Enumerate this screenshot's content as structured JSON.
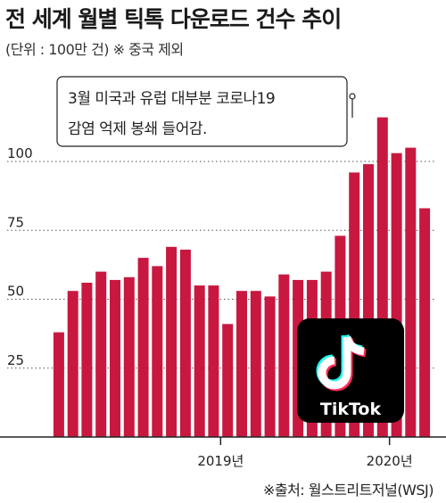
{
  "header": {
    "title": "전 세계 월별 틱톡 다운로드 건수 추이",
    "subtitle": "(단위 : 100만 건)  ※ 중국 제외"
  },
  "callout": {
    "line1": "3월 미국과 유럽 대부분 코로나19",
    "line2": "감염 억제 봉쇄 들어감."
  },
  "logo": {
    "label": "TikTok"
  },
  "source": "※출처: 월스트리트저널(WSJ)",
  "colors": {
    "bar": "#c8183f",
    "logo_bg": "#000000"
  },
  "chart_data": {
    "type": "bar",
    "title": "전 세계 월별 틱톡 다운로드 건수 추이",
    "unit": "100만 건",
    "ylim": [
      0,
      125
    ],
    "yticks": [
      25,
      50,
      75,
      100
    ],
    "grid": "dotted horizontal",
    "x_labels": [
      {
        "label": "2019년",
        "index": 12
      },
      {
        "label": "2020년",
        "index": 24
      }
    ],
    "values": [
      38,
      53,
      56,
      60,
      57,
      58,
      65,
      62,
      69,
      68,
      55,
      55,
      41,
      53,
      53,
      51,
      59,
      57,
      57,
      60,
      73,
      96,
      99,
      116,
      103,
      105,
      83
    ],
    "annotation": {
      "text": "3월 미국과 유럽 대부분 코로나19 감염 억제 봉쇄 들어감.",
      "index": 22
    }
  }
}
